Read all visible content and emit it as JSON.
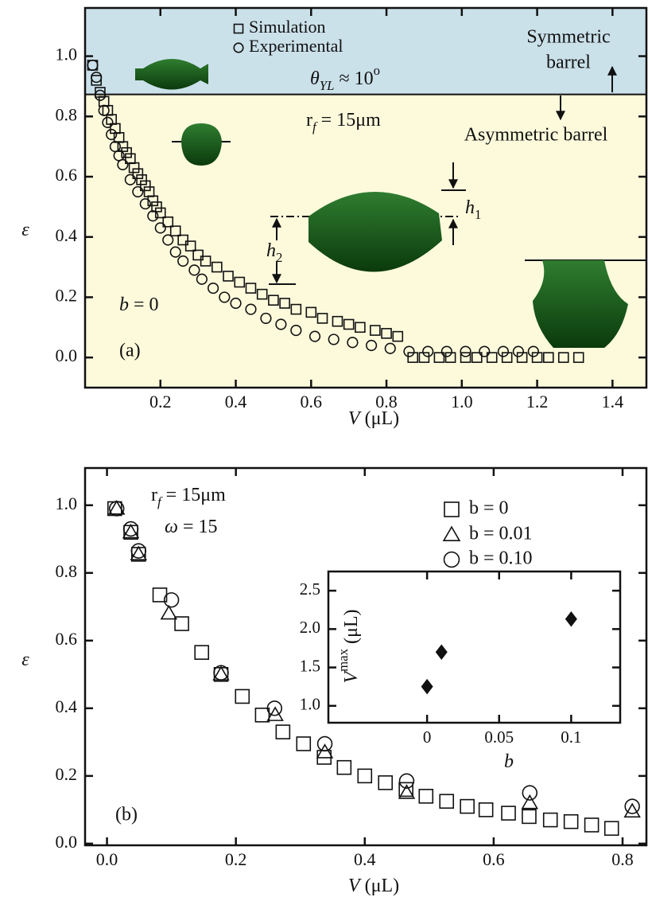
{
  "chart_data": [
    {
      "type": "scatter",
      "xlabel": [
        "V",
        " (μL)"
      ],
      "ylabel": "ε",
      "xlim": [
        0,
        1.49
      ],
      "ylim": [
        -0.1,
        1.16
      ],
      "xticks": [
        0.2,
        0.4,
        0.6,
        0.8,
        {
          "value": 1.0,
          "label": "1.0"
        },
        1.2,
        1.4
      ],
      "yticks": [
        {
          "value": 0,
          "label": "0.0"
        },
        0.2,
        0.4,
        0.6,
        0.8,
        {
          "value": 1,
          "label": "1.0"
        }
      ],
      "band": {
        "value": 0.873,
        "colors": [
          "#fdfadc",
          "#cbe1ea"
        ]
      },
      "series": [
        {
          "name": "Simulation",
          "marker": "square",
          "color": "#111",
          "fill": "none",
          "x": [
            0.02,
            0.03,
            0.04,
            0.05,
            0.06,
            0.07,
            0.08,
            0.09,
            0.1,
            0.11,
            0.12,
            0.13,
            0.14,
            0.15,
            0.16,
            0.17,
            0.18,
            0.19,
            0.2,
            0.22,
            0.24,
            0.26,
            0.28,
            0.3,
            0.32,
            0.35,
            0.38,
            0.41,
            0.44,
            0.47,
            0.5,
            0.53,
            0.56,
            0.6,
            0.63,
            0.67,
            0.7,
            0.73,
            0.77,
            0.8,
            0.83,
            0.87,
            0.9,
            0.94,
            0.97,
            1.01,
            1.04,
            1.08,
            1.12,
            1.16,
            1.2,
            1.23,
            1.27,
            1.31
          ],
          "values": [
            0.97,
            0.92,
            0.88,
            0.85,
            0.82,
            0.79,
            0.76,
            0.73,
            0.7,
            0.68,
            0.66,
            0.63,
            0.61,
            0.59,
            0.57,
            0.55,
            0.52,
            0.5,
            0.48,
            0.45,
            0.42,
            0.39,
            0.37,
            0.34,
            0.32,
            0.3,
            0.27,
            0.25,
            0.23,
            0.21,
            0.19,
            0.18,
            0.16,
            0.15,
            0.13,
            0.12,
            0.11,
            0.1,
            0.09,
            0.08,
            0.07,
            0,
            0,
            0,
            0,
            0,
            0,
            0,
            0,
            0,
            0,
            0,
            0,
            0
          ]
        },
        {
          "name": "Experimental",
          "marker": "circle",
          "color": "#111",
          "fill": "none",
          "x": [
            0.02,
            0.03,
            0.04,
            0.05,
            0.06,
            0.07,
            0.08,
            0.09,
            0.1,
            0.12,
            0.14,
            0.16,
            0.18,
            0.2,
            0.22,
            0.24,
            0.26,
            0.29,
            0.31,
            0.34,
            0.37,
            0.4,
            0.44,
            0.48,
            0.52,
            0.56,
            0.61,
            0.66,
            0.71,
            0.76,
            0.81,
            0.86,
            0.91,
            0.96,
            1.01,
            1.06,
            1.11,
            1.15,
            1.19
          ],
          "values": [
            0.97,
            0.93,
            0.87,
            0.82,
            0.78,
            0.74,
            0.7,
            0.67,
            0.64,
            0.59,
            0.55,
            0.51,
            0.47,
            0.43,
            0.39,
            0.35,
            0.32,
            0.29,
            0.26,
            0.23,
            0.2,
            0.18,
            0.16,
            0.13,
            0.11,
            0.09,
            0.07,
            0.06,
            0.05,
            0.04,
            0.03,
            0.02,
            0.02,
            0.02,
            0.02,
            0.02,
            0.02,
            0.02,
            0.02
          ]
        }
      ],
      "annotations": {
        "theta": [
          "θ",
          "YL",
          " ≈ 10",
          "o"
        ],
        "rf": [
          "r",
          "f",
          " = 15μm"
        ],
        "sym": [
          "Symmetric",
          "barrel"
        ],
        "asym": "Asymmetric barrel",
        "h1": [
          "h",
          "1"
        ],
        "h2": [
          "h",
          "2"
        ],
        "b": [
          "b",
          " = 0"
        ],
        "panel": "(a)"
      }
    },
    {
      "type": "scatter",
      "xlabel": [
        "V",
        " (μL)"
      ],
      "ylabel": "ε",
      "xlim": [
        -0.034,
        0.837
      ],
      "ylim": [
        -0.005,
        1.11
      ],
      "xticks": [
        {
          "value": 0,
          "label": "0.0"
        },
        0.2,
        0.4,
        0.6,
        0.8
      ],
      "yticks": [
        {
          "value": 0,
          "label": "0.0"
        },
        0.2,
        0.4,
        0.6,
        0.8,
        {
          "value": 1,
          "label": "1.0"
        }
      ],
      "series": [
        {
          "name": "b = 0",
          "marker": "square",
          "color": "#111",
          "fill": "none",
          "x": [
            0.012,
            0.037,
            0.049,
            0.082,
            0.116,
            0.147,
            0.177,
            0.21,
            0.241,
            0.273,
            0.305,
            0.337,
            0.368,
            0.4,
            0.432,
            0.464,
            0.495,
            0.527,
            0.559,
            0.588,
            0.623,
            0.655,
            0.688,
            0.72,
            0.752,
            0.783
          ],
          "values": [
            0.99,
            0.92,
            0.855,
            0.735,
            0.65,
            0.565,
            0.5,
            0.435,
            0.38,
            0.33,
            0.295,
            0.255,
            0.225,
            0.2,
            0.18,
            0.16,
            0.14,
            0.125,
            0.11,
            0.1,
            0.09,
            0.08,
            0.07,
            0.065,
            0.055,
            0.045
          ]
        },
        {
          "name": "b = 0.01",
          "marker": "triangle",
          "color": "#111",
          "fill": "none",
          "x": [
            0.015,
            0.037,
            0.049,
            0.096,
            0.177,
            0.261,
            0.338,
            0.465,
            0.656,
            0.815
          ],
          "values": [
            0.99,
            0.92,
            0.855,
            0.68,
            0.5,
            0.38,
            0.27,
            0.15,
            0.12,
            0.095
          ]
        },
        {
          "name": "b = 0.10",
          "marker": "circle",
          "color": "#111",
          "fill": "none",
          "x": [
            0.015,
            0.037,
            0.049,
            0.1,
            0.177,
            0.26,
            0.338,
            0.465,
            0.656,
            0.815
          ],
          "values": [
            0.99,
            0.93,
            0.865,
            0.72,
            0.505,
            0.4,
            0.295,
            0.185,
            0.15,
            0.11
          ]
        }
      ],
      "annotations": {
        "rf": [
          "r",
          "f",
          " = 15μm"
        ],
        "omega": [
          "ω",
          " = 15"
        ],
        "panel": "(b)"
      }
    },
    {
      "type": "scatter",
      "xlabel": "b",
      "ylabel": [
        "V",
        "max",
        " (μL)"
      ],
      "xlim": [
        -0.0685,
        0.134
      ],
      "ylim": [
        0.78,
        2.75
      ],
      "xticks": [
        0,
        0.05,
        0.1
      ],
      "yticks": [
        {
          "value": 1,
          "label": "1.0"
        },
        1.5,
        {
          "value": 2,
          "label": "2.0"
        },
        2.5
      ],
      "series": [
        {
          "marker": "diamond",
          "color": "#111",
          "fill": "#111",
          "x": [
            0,
            0.01,
            0.1
          ],
          "values": [
            1.25,
            1.7,
            2.13
          ]
        }
      ]
    }
  ]
}
